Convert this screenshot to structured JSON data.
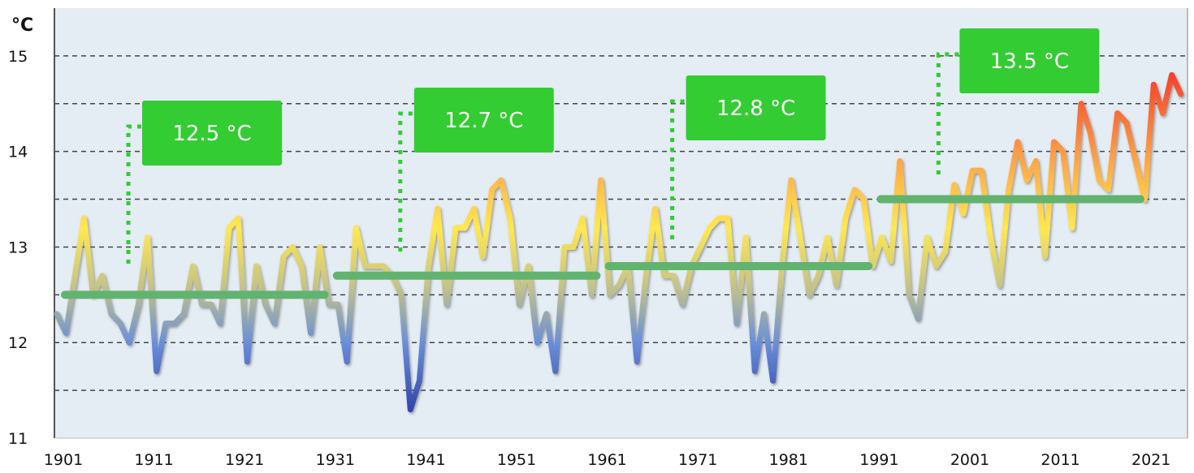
{
  "chart_data": {
    "type": "line",
    "title": "",
    "xlabel": "",
    "ylabel": "°C",
    "ylim": [
      11,
      15.5
    ],
    "xlim": [
      1901,
      2025
    ],
    "yticks": [
      "11",
      "12",
      "13",
      "14",
      "15"
    ],
    "xticks": [
      "1901",
      "1911",
      "1921",
      "1931",
      "1941",
      "1951",
      "1961",
      "1971",
      "1981",
      "1991",
      "2001",
      "2011",
      "2021"
    ],
    "grid": "horizontal dashed, every 0.5",
    "x_start": 1901,
    "values": [
      12.3,
      12.1,
      12.7,
      13.3,
      12.5,
      12.7,
      12.3,
      12.2,
      12.0,
      12.4,
      13.1,
      11.7,
      12.2,
      12.2,
      12.3,
      12.8,
      12.4,
      12.4,
      12.2,
      13.2,
      13.3,
      11.8,
      12.8,
      12.4,
      12.2,
      12.9,
      13.0,
      12.8,
      12.1,
      13.0,
      12.4,
      12.4,
      11.8,
      13.2,
      12.8,
      12.8,
      12.8,
      12.7,
      12.5,
      11.3,
      11.6,
      12.8,
      13.4,
      12.4,
      13.2,
      13.2,
      13.4,
      12.9,
      13.6,
      13.7,
      13.3,
      12.4,
      12.8,
      12.0,
      12.3,
      11.7,
      13.0,
      13.0,
      13.3,
      12.5,
      13.7,
      12.5,
      12.6,
      12.8,
      11.8,
      12.7,
      13.4,
      12.7,
      12.7,
      12.4,
      12.8,
      13.0,
      13.2,
      13.3,
      13.3,
      12.2,
      13.1,
      11.7,
      12.3,
      11.6,
      12.8,
      13.7,
      13.1,
      12.5,
      12.7,
      13.1,
      12.6,
      13.3,
      13.6,
      13.5,
      12.8,
      13.1,
      12.85,
      13.9,
      12.5,
      12.25,
      13.1,
      12.8,
      12.95,
      13.65,
      13.35,
      13.8,
      13.8,
      13.1,
      12.6,
      13.6,
      14.1,
      13.7,
      13.9,
      12.9,
      14.1,
      14.0,
      13.2,
      14.5,
      14.2,
      13.7,
      13.6,
      14.4,
      14.3,
      13.9,
      13.5,
      14.7,
      14.4,
      14.8,
      14.6
    ],
    "color_scale": [
      {
        "value": 11.3,
        "color": "#3346ad"
      },
      {
        "value": 12.0,
        "color": "#6a8fd8"
      },
      {
        "value": 12.6,
        "color": "#c6c486"
      },
      {
        "value": 13.2,
        "color": "#ffe84f"
      },
      {
        "value": 13.8,
        "color": "#fdb04a"
      },
      {
        "value": 14.8,
        "color": "#f2432e"
      }
    ],
    "averages": [
      {
        "from": 1901,
        "to": 1930,
        "value": 12.5,
        "label": "12.5 °C"
      },
      {
        "from": 1931,
        "to": 1960,
        "value": 12.7,
        "label": "12.7 °C"
      },
      {
        "from": 1961,
        "to": 1990,
        "value": 12.8,
        "label": "12.8 °C"
      },
      {
        "from": 1991,
        "to": 2020,
        "value": 13.5,
        "label": "13.5 °C"
      }
    ]
  },
  "colors": {
    "plot_background": "#e4ecf4",
    "average_line": "#62b36f",
    "label_box": "#33cc33",
    "grid": "#444444"
  }
}
